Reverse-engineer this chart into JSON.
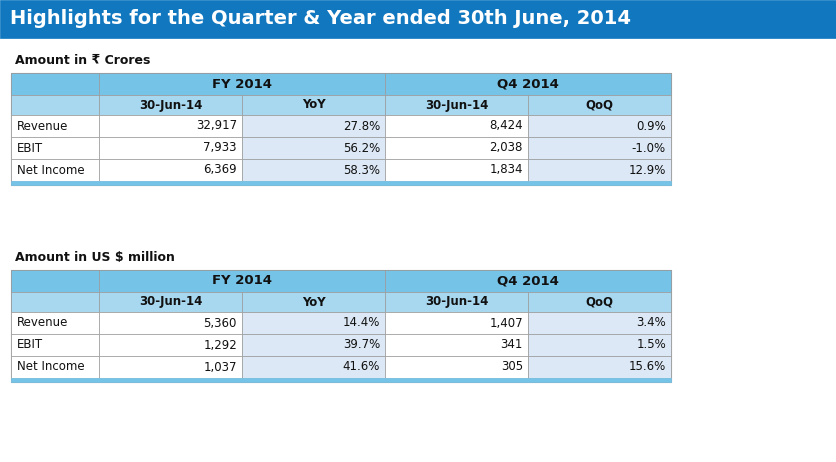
{
  "title": "Highlights for the Quarter & Year ended 30th June, 2014",
  "title_bg": "#1178c0",
  "title_color": "#ffffff",
  "subtitle1": "Amount in ₹ Crores",
  "subtitle2": "Amount in US $ million",
  "table1": {
    "col_groups": [
      "FY 2014",
      "Q4 2014"
    ],
    "col_headers": [
      "30-Jun-14",
      "YoY",
      "30-Jun-14",
      "QoQ"
    ],
    "rows": [
      [
        "Revenue",
        "32,917",
        "27.8%",
        "8,424",
        "0.9%"
      ],
      [
        "EBIT",
        "7,933",
        "56.2%",
        "2,038",
        "-1.0%"
      ],
      [
        "Net Income",
        "6,369",
        "58.3%",
        "1,834",
        "12.9%"
      ]
    ]
  },
  "table2": {
    "col_groups": [
      "FY 2014",
      "Q4 2014"
    ],
    "col_headers": [
      "30-Jun-14",
      "YoY",
      "30-Jun-14",
      "QoQ"
    ],
    "rows": [
      [
        "Revenue",
        "5,360",
        "14.4%",
        "1,407",
        "3.4%"
      ],
      [
        "EBIT",
        "1,292",
        "39.7%",
        "341",
        "1.5%"
      ],
      [
        "Net Income",
        "1,037",
        "41.6%",
        "305",
        "15.6%"
      ]
    ]
  },
  "header_bg": "#76c3e8",
  "subheader_bg": "#a8d8f0",
  "yoy_cell_bg": "#dce8f5",
  "normal_cell_bg": "#ffffff",
  "border_color": "#999999",
  "bg_color": "#ffffff",
  "table_bottom_strip": "#76c3e8",
  "fig_w": 8.37,
  "fig_h": 4.62,
  "dpi": 100
}
